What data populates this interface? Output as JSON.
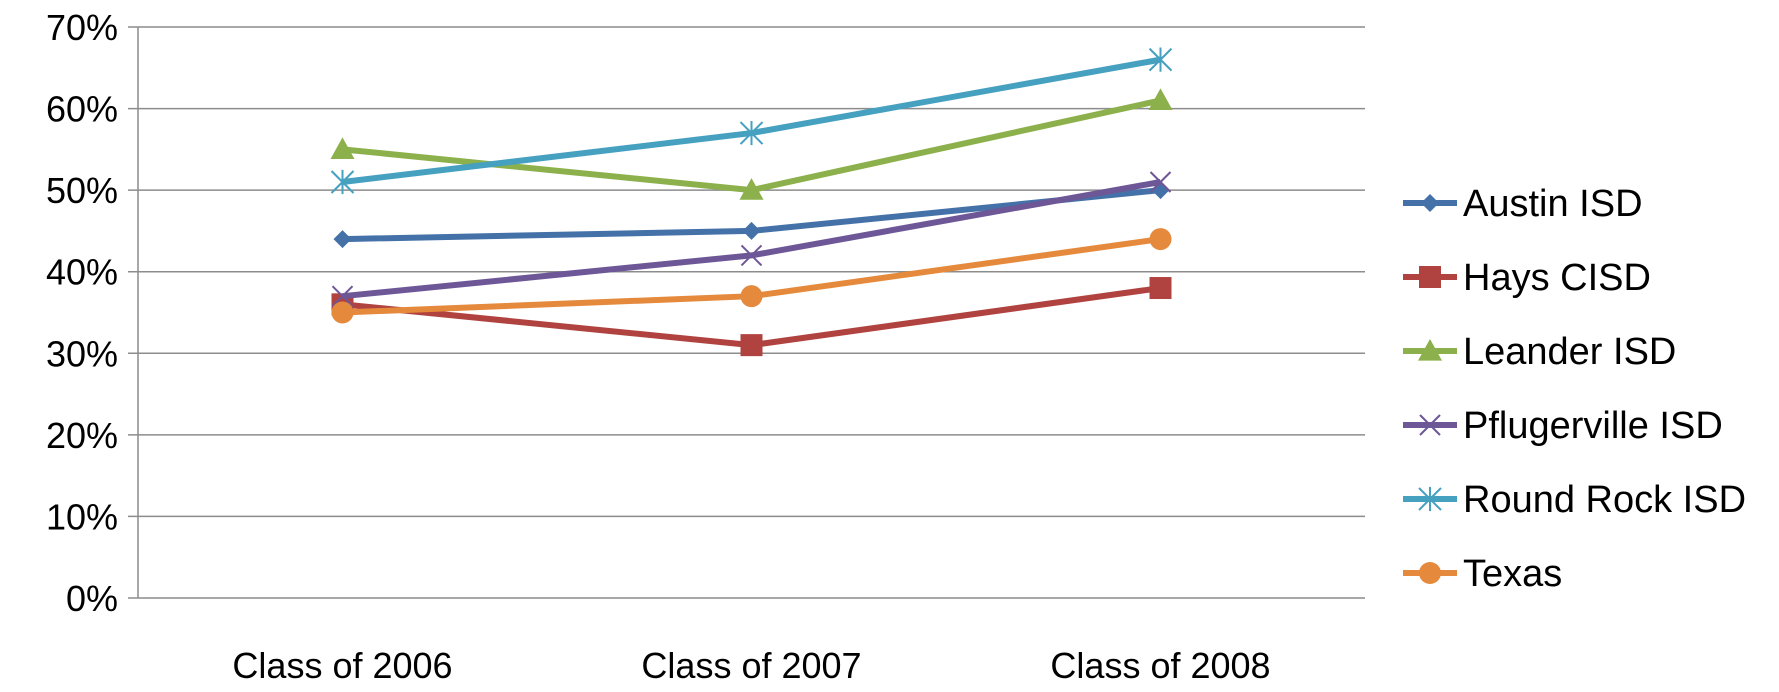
{
  "chart_data": {
    "type": "line",
    "categories": [
      "Class of 2006",
      "Class of 2007",
      "Class of 2008"
    ],
    "y_ticks": [
      "0%",
      "10%",
      "20%",
      "30%",
      "40%",
      "50%",
      "60%",
      "70%"
    ],
    "ylim": [
      0,
      70
    ],
    "y_unit": "%",
    "grid": true,
    "legend_position": "right",
    "series": [
      {
        "name": "Austin ISD",
        "color": "#4472a8",
        "marker": "diamond",
        "values": [
          44,
          45,
          50
        ]
      },
      {
        "name": "Hays CISD",
        "color": "#b0433f",
        "marker": "square",
        "values": [
          36,
          31,
          38
        ]
      },
      {
        "name": "Leander ISD",
        "color": "#8cb04b",
        "marker": "triangle",
        "values": [
          55,
          50,
          61
        ]
      },
      {
        "name": "Pflugerville ISD",
        "color": "#6e5797",
        "marker": "x",
        "values": [
          37,
          42,
          51
        ]
      },
      {
        "name": "Round Rock ISD",
        "color": "#46a0c0",
        "marker": "star",
        "values": [
          51,
          57,
          66
        ]
      },
      {
        "name": "Texas",
        "color": "#e58a3c",
        "marker": "circle",
        "values": [
          35,
          37,
          44
        ]
      }
    ]
  }
}
